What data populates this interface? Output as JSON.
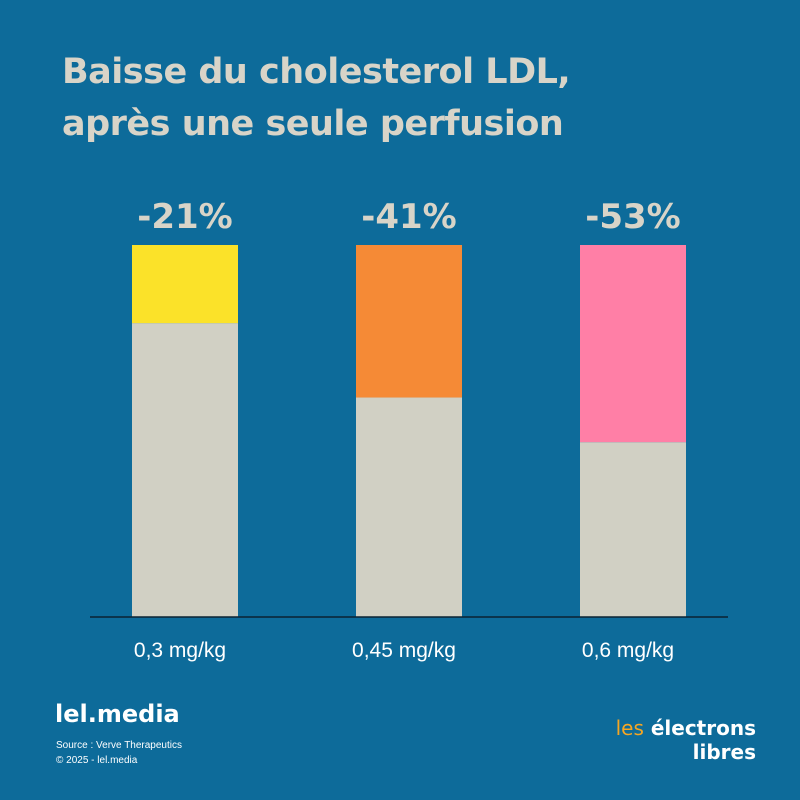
{
  "title_lines": [
    "Baisse du cholesterol LDL,",
    "après une seule perfusion"
  ],
  "chart_data": {
    "type": "bar",
    "stacked": true,
    "title": "Baisse du cholesterol LDL, après une seule perfusion",
    "categories": [
      "0,3 mg/kg",
      "0,45 mg/kg",
      "0,6 mg/kg"
    ],
    "reduction_labels": [
      "-21%",
      "-41%",
      "-53%"
    ],
    "reduction_percent": [
      21,
      41,
      53
    ],
    "baseline_percent": 100,
    "colors": {
      "remaining": "#d1d0c4",
      "reductions": [
        "#fbe229",
        "#f58a36",
        "#ff7fa6"
      ]
    },
    "ylim": [
      0,
      100
    ]
  },
  "footer": {
    "brand": "lel.media",
    "source": "Source : Verve Therapeutics",
    "copyright": "© 2025 - lel.media"
  },
  "logo": {
    "word1": "les",
    "word2": "électrons",
    "word3": "libres"
  },
  "colors": {
    "background": "#0d6b9a",
    "text_light": "#d8d4c8",
    "axis": "#0b2233"
  }
}
